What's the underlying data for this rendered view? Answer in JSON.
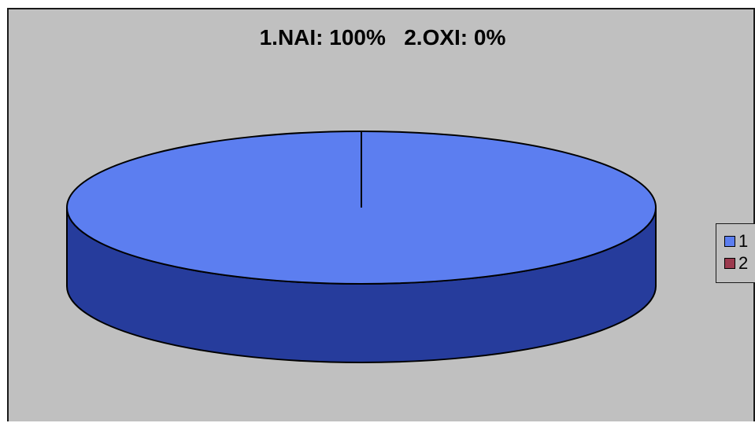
{
  "chart_data": {
    "type": "pie",
    "title": "1.NAI: 100%   2.OXI: 0%",
    "categories": [
      "1",
      "2"
    ],
    "values": [
      100,
      0
    ],
    "colors": [
      "#5c7ef0",
      "#9b3a4e"
    ],
    "side_color": "#263c9c",
    "background": "#c0c0c0",
    "style": "3d",
    "legend": {
      "position": "right",
      "entries": [
        "1",
        "2"
      ]
    }
  }
}
